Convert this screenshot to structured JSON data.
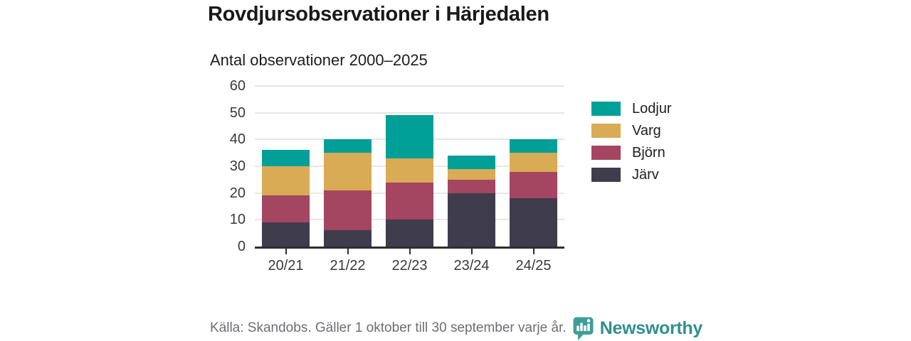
{
  "title": "Rovdjursobservationer i Härjedalen",
  "subtitle": "Antal observationer 2000–2025",
  "footer": {
    "source": "Källa: Skandobs. Gäller 1 oktober till 30 september varje år.",
    "brand": "Newsworthy"
  },
  "colors": {
    "lodjur": "#00a099",
    "varg": "#d9ab55",
    "bjorn": "#a44561",
    "jarv": "#3f3d4c",
    "brand_teal": "#3f9e99",
    "axis": "#2e2e31",
    "grid": "#e6e6e6",
    "tick_label": "#3a3a3a",
    "source_text": "#6e6e73"
  },
  "chart_data": {
    "type": "bar",
    "stacked": true,
    "title": "Rovdjursobservationer i Härjedalen",
    "subtitle": "Antal observationer 2000–2025",
    "xlabel": "",
    "ylabel": "",
    "ylim": [
      0,
      60
    ],
    "y_ticks": [
      0,
      10,
      20,
      30,
      40,
      50,
      60
    ],
    "grid": "horizontal",
    "legend_position": "right",
    "categories": [
      "20/21",
      "21/22",
      "22/23",
      "23/24",
      "24/25"
    ],
    "series": [
      {
        "name": "Järv",
        "color": "#3f3d4c",
        "values": [
          9,
          6,
          10,
          20,
          18
        ]
      },
      {
        "name": "Björn",
        "color": "#a44561",
        "values": [
          10,
          15,
          14,
          5,
          10
        ]
      },
      {
        "name": "Varg",
        "color": "#d9ab55",
        "values": [
          11,
          14,
          9,
          4,
          7
        ]
      },
      {
        "name": "Lodjur",
        "color": "#00a099",
        "values": [
          6,
          5,
          16,
          5,
          5
        ]
      }
    ],
    "totals": [
      36,
      40,
      49,
      34,
      40
    ],
    "legend_order": [
      "Lodjur",
      "Varg",
      "Björn",
      "Järv"
    ]
  }
}
